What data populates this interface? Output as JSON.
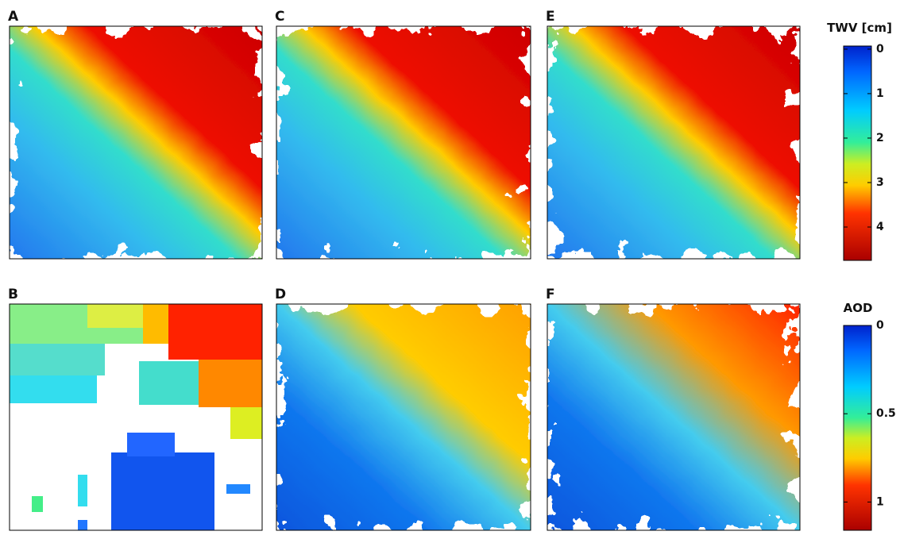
{
  "panels": [
    "A",
    "B",
    "C",
    "D",
    "E",
    "F"
  ],
  "colorbars": [
    {
      "title": "TWV [cm]",
      "lim": [
        -0.07,
        4.75
      ],
      "ticks": [
        0,
        1,
        2,
        3,
        4
      ]
    },
    {
      "title": "AOD",
      "lim": [
        0,
        1.16
      ],
      "ticks": [
        0,
        0.5,
        1
      ]
    }
  ]
}
